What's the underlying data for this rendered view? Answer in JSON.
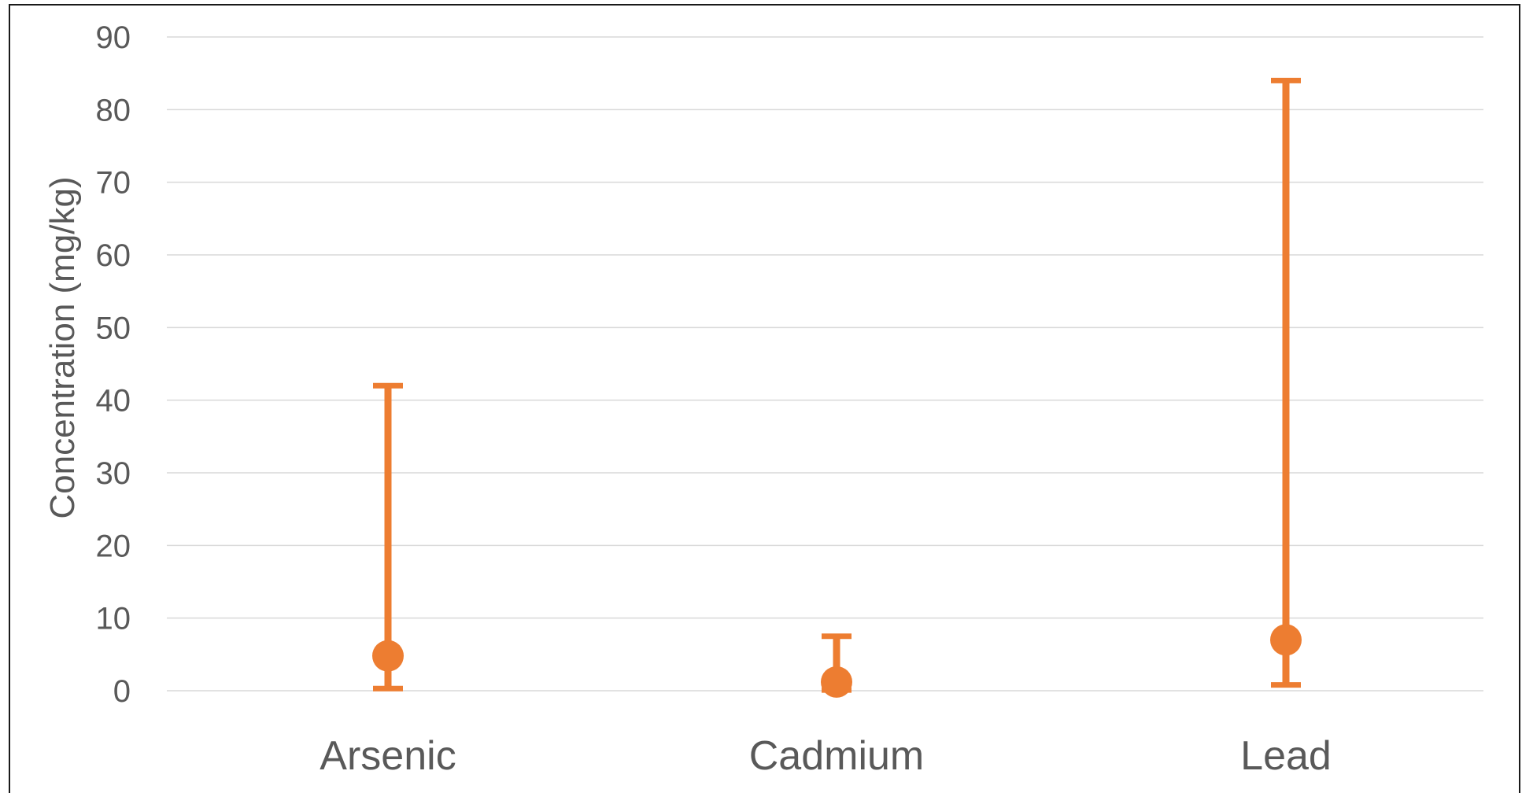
{
  "chart_data": {
    "type": "scatter",
    "title": "",
    "xlabel": "",
    "ylabel": "Concentration (mg/kg)",
    "ylim": [
      0,
      90
    ],
    "yticks": [
      0,
      10,
      20,
      30,
      40,
      50,
      60,
      70,
      80,
      90
    ],
    "grid": true,
    "legend": "none",
    "categories": [
      "Arsenic",
      "Cadmium",
      "Lead"
    ],
    "series": [
      {
        "values": [
          4.8,
          1.2,
          7.0
        ],
        "error_min": [
          0.3,
          0.1,
          0.8
        ],
        "error_max": [
          42.0,
          7.5,
          84.0
        ],
        "color": "#ED7D31"
      }
    ]
  }
}
